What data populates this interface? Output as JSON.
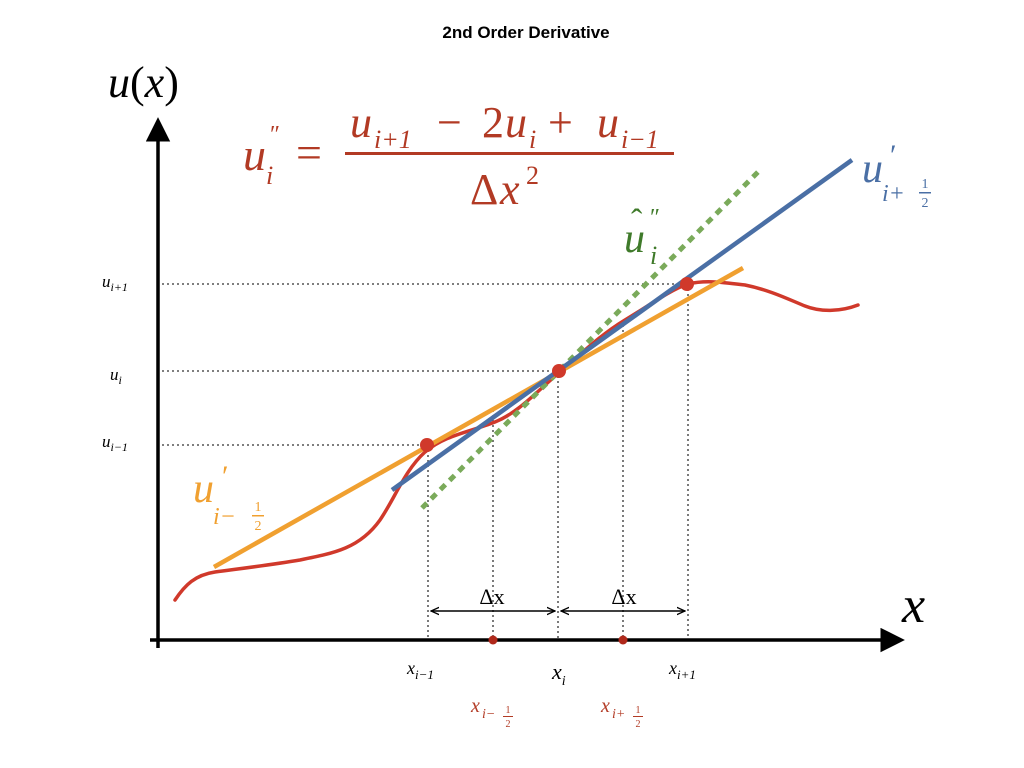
{
  "title": "2nd Order Derivative",
  "colors": {
    "curve": "#d0392b",
    "formula": "#b23a24",
    "blue_line": "#4a6fa5",
    "orange_line": "#f0a030",
    "green_line": "#7aaa5a",
    "green_text": "#3f7a2a",
    "point": "#d0392b",
    "midpoint": "#b0291b",
    "axis": "#000000"
  },
  "axes": {
    "y_label_u": "u",
    "y_label_paren_open": "(",
    "y_label_x": "x",
    "y_label_paren_close": ")",
    "x_label": "x"
  },
  "formula": {
    "lhs_u": "u",
    "lhs_sub": "i",
    "lhs_prime": "″",
    "equals": "=",
    "num_u1": "u",
    "num_sub1": "i+1",
    "num_minus": "−",
    "num_two": "2",
    "num_u2": "u",
    "num_sub2": "i",
    "num_plus": "+",
    "num_u3": "u",
    "num_sub3": "i−1",
    "den_delta": "Δ",
    "den_x": "x",
    "den_sup": "2"
  },
  "blue_label": {
    "u": "u",
    "prime": "′",
    "sub": "i+",
    "frac_num": "1",
    "frac_den": "2"
  },
  "orange_label": {
    "u": "u",
    "prime": "′",
    "sub": "i−",
    "frac_num": "1",
    "frac_den": "2"
  },
  "green_label": {
    "u": "u",
    "hat": "ˆ",
    "prime": "″",
    "sub": "i"
  },
  "y_ticks": {
    "u_ip1": {
      "u": "u",
      "sub": "i+1"
    },
    "u_i": {
      "u": "u",
      "sub": "i"
    },
    "u_im1": {
      "u": "u",
      "sub": "i−1"
    }
  },
  "x_ticks": {
    "x_im1": {
      "x": "x",
      "sub": "i−1"
    },
    "x_i": {
      "x": "x",
      "sub": "i"
    },
    "x_ip1": {
      "x": "x",
      "sub": "i+1"
    },
    "x_imh": {
      "x": "x",
      "sub": "i−",
      "frac_num": "1",
      "frac_den": "2"
    },
    "x_iph": {
      "x": "x",
      "sub": "i+",
      "frac_num": "1",
      "frac_den": "2"
    }
  },
  "delta_labels": {
    "left": "Δx",
    "right": "Δx"
  }
}
